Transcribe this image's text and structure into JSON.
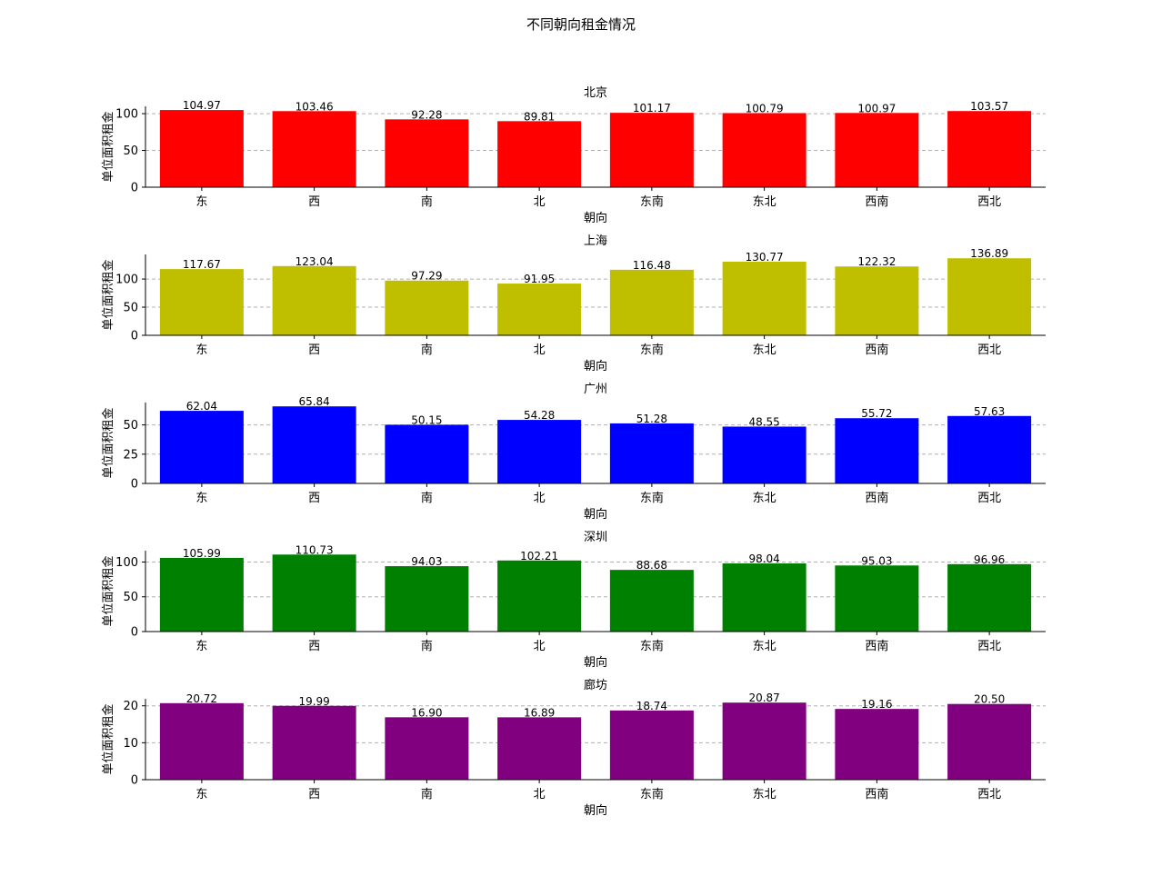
{
  "chart_data": {
    "type": "bar",
    "title": "不同朝向租金情况",
    "categories": [
      "东",
      "西",
      "南",
      "北",
      "东南",
      "东北",
      "西南",
      "西北"
    ],
    "xlabel": "朝向",
    "ylabel": "单位面积租金",
    "grid": "y-dashed",
    "subplots": [
      {
        "title": "北京",
        "color": "#ff0000",
        "ylim": [
          0,
          110
        ],
        "yticks": [
          "0",
          "50",
          "100"
        ],
        "yticks_values": [
          0,
          50,
          100
        ],
        "values": [
          104.97,
          103.46,
          92.28,
          89.81,
          101.17,
          100.79,
          100.97,
          103.57
        ],
        "labels": [
          "104.97",
          "103.46",
          "92.28",
          "89.81",
          "101.17",
          "100.79",
          "100.97",
          "103.57"
        ]
      },
      {
        "title": "上海",
        "color": "#bfbf00",
        "ylim": [
          0,
          143.7
        ],
        "yticks": [
          "0",
          "50",
          "100"
        ],
        "yticks_values": [
          0,
          50,
          100
        ],
        "values": [
          117.67,
          123.04,
          97.29,
          91.95,
          116.48,
          130.77,
          122.32,
          136.89
        ],
        "labels": [
          "117.67",
          "123.04",
          "97.29",
          "91.95",
          "116.48",
          "130.77",
          "122.32",
          "136.89"
        ]
      },
      {
        "title": "广州",
        "color": "#0000ff",
        "ylim": [
          0,
          69.1
        ],
        "yticks": [
          "0",
          "25",
          "50"
        ],
        "yticks_values": [
          0,
          25,
          50
        ],
        "values": [
          62.04,
          65.84,
          50.15,
          54.28,
          51.28,
          48.55,
          55.72,
          57.63
        ],
        "labels": [
          "62.04",
          "65.84",
          "50.15",
          "54.28",
          "51.28",
          "48.55",
          "55.72",
          "57.63"
        ]
      },
      {
        "title": "深圳",
        "color": "#008000",
        "ylim": [
          0,
          116.3
        ],
        "yticks": [
          "0",
          "50",
          "100"
        ],
        "yticks_values": [
          0,
          50,
          100
        ],
        "values": [
          105.99,
          110.73,
          94.03,
          102.21,
          88.68,
          98.04,
          95.03,
          96.96
        ],
        "labels": [
          "105.99",
          "110.73",
          "94.03",
          "102.21",
          "88.68",
          "98.04",
          "95.03",
          "96.96"
        ]
      },
      {
        "title": "廊坊",
        "color": "#800080",
        "ylim": [
          0,
          21.9
        ],
        "yticks": [
          "0",
          "10",
          "20"
        ],
        "yticks_values": [
          0,
          10,
          20
        ],
        "values": [
          20.72,
          19.99,
          16.9,
          16.89,
          18.74,
          20.87,
          19.16,
          20.5
        ],
        "labels": [
          "20.72",
          "19.99",
          "16.90",
          "16.89",
          "18.74",
          "20.87",
          "19.16",
          "20.50"
        ]
      }
    ]
  }
}
